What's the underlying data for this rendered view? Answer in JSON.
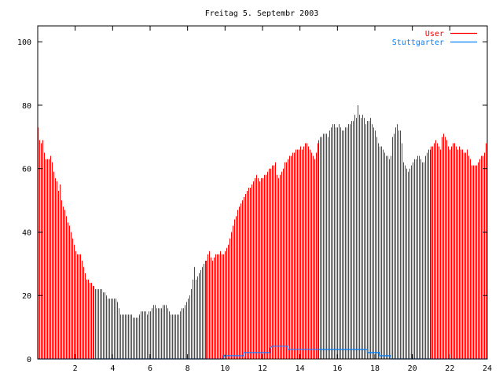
{
  "chart_data": {
    "type": "bar",
    "title": "Freitag 5. Septembr 2003",
    "xlabel": "",
    "ylabel": "",
    "xlim": [
      0,
      24
    ],
    "ylim": [
      0,
      105
    ],
    "grid": false,
    "legend_position": "top-right",
    "x_ticks": [
      2,
      4,
      6,
      8,
      10,
      12,
      14,
      16,
      18,
      20,
      22,
      24
    ],
    "y_ticks": [
      0,
      20,
      40,
      60,
      80,
      100
    ],
    "series": [
      {
        "name": "User",
        "style": "impulses",
        "color": "#ff0000",
        "x_start": 0,
        "x_step_hours": 0.0833333,
        "values": [
          73,
          69,
          68,
          69,
          65,
          63,
          63,
          63,
          64,
          62,
          59,
          57,
          56,
          53,
          55,
          50,
          48,
          47,
          45,
          43,
          42,
          40,
          38,
          36,
          34,
          33,
          33,
          33,
          31,
          29,
          27,
          25,
          25,
          24,
          24,
          23,
          23,
          22,
          22,
          22,
          22,
          22,
          21,
          21,
          20,
          19,
          19,
          19,
          19,
          19,
          19,
          18,
          16,
          14,
          14,
          14,
          14,
          14,
          14,
          14,
          14,
          13,
          13,
          13,
          13,
          14,
          15,
          15,
          15,
          15,
          14,
          15,
          15,
          16,
          17,
          17,
          16,
          16,
          16,
          16,
          17,
          17,
          17,
          16,
          15,
          14,
          14,
          14,
          14,
          14,
          14,
          15,
          16,
          16,
          17,
          18,
          19,
          20,
          22,
          25,
          29,
          25,
          26,
          27,
          28,
          29,
          30,
          31,
          31,
          33,
          34,
          32,
          31,
          32,
          33,
          33,
          33,
          34,
          33,
          33,
          34,
          35,
          36,
          38,
          40,
          42,
          44,
          45,
          47,
          48,
          49,
          50,
          51,
          52,
          53,
          54,
          54,
          55,
          56,
          57,
          58,
          57,
          56,
          57,
          57,
          58,
          58,
          59,
          60,
          60,
          61,
          61,
          62,
          58,
          57,
          58,
          59,
          60,
          62,
          62,
          63,
          64,
          64,
          65,
          65,
          66,
          66,
          66,
          67,
          66,
          67,
          68,
          68,
          67,
          66,
          65,
          64,
          63,
          65,
          68,
          69,
          70,
          70,
          71,
          71,
          71,
          70,
          72,
          73,
          74,
          74,
          73,
          73,
          74,
          73,
          72,
          72,
          73,
          73,
          74,
          74,
          75,
          75,
          77,
          76,
          80,
          77,
          76,
          77,
          76,
          74,
          75,
          75,
          76,
          74,
          73,
          72,
          70,
          68,
          67,
          67,
          66,
          65,
          64,
          64,
          63,
          64,
          70,
          71,
          73,
          74,
          72,
          72,
          68,
          62,
          61,
          60,
          59,
          60,
          61,
          62,
          63,
          63,
          64,
          64,
          63,
          62,
          62,
          64,
          65,
          66,
          66,
          67,
          67,
          68,
          69,
          68,
          67,
          66,
          70,
          71,
          70,
          69,
          67,
          66,
          67,
          68,
          68,
          67,
          66,
          67,
          66,
          66,
          65,
          65,
          66,
          64,
          63,
          61,
          61,
          61,
          61,
          62,
          63,
          64,
          64,
          65,
          68
        ]
      },
      {
        "name": "Stuttgarter",
        "style": "steps",
        "color": "#0080ff",
        "x": [
          0,
          9.9,
          9.9,
          11,
          11,
          12.4,
          12.4,
          12.5,
          13.35,
          13.35,
          17.6,
          17.6,
          18.25,
          18.25,
          18.85,
          18.85,
          24
        ],
        "y": [
          0,
          0,
          1,
          1,
          2,
          2,
          3.3,
          4,
          4,
          3,
          3,
          2,
          2,
          1,
          1,
          0,
          0
        ]
      }
    ]
  }
}
